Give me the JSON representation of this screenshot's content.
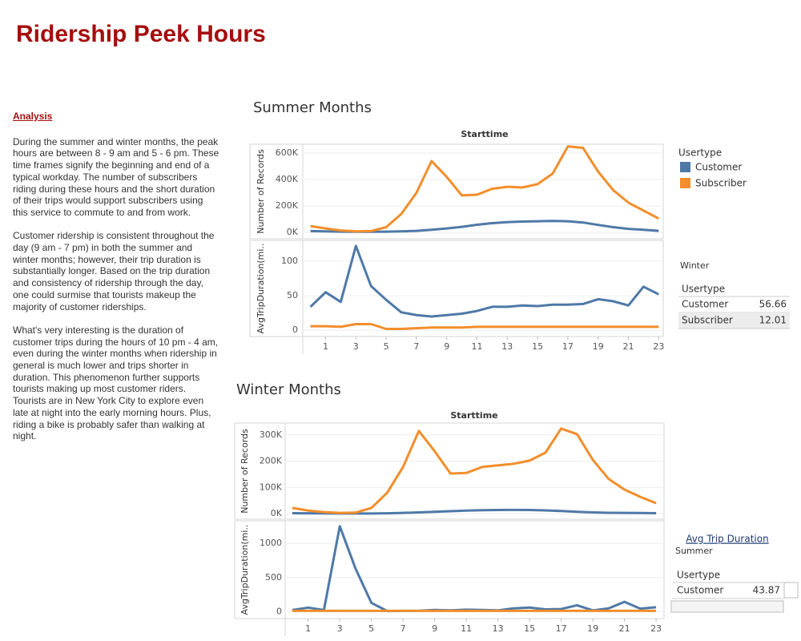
{
  "title": "Ridership Peek Hours",
  "analysis": {
    "heading": "Analysis",
    "paragraphs": [
      "During the summer and winter months, the peak hours are between 8 - 9 am and 5 - 6 pm. These time frames signify the beginning and end of a typical workday. The number of subscribers riding during these hours and the short duration of their trips would support subscribers using this service to commute to and from work.",
      "Customer ridership is consistent throughout the day (9 am - 7 pm) in both the summer and winter months; however, their trip duration is substantially longer. Based on the trip duration and consistency of ridership through the day, one could surmise that tourists makeup the majority of customer riderships.",
      "What's very interesting is the duration of customer trips during the hours of 10 pm - 4 am, even during the winter months when ridership in general is much lower and trips shorter in duration. This phenomenon further supports tourists making up most customer riders. Tourists are in New York City to explore even late at night into the early morning hours. Plus, riding a bike is probably safer than walking at night."
    ]
  },
  "chart_data": [
    {
      "type": "line",
      "title": "Summer Months",
      "subtitle": "Starttime",
      "ylabel": "Number of Records",
      "legend_title": "Usertype",
      "x": [
        0,
        1,
        2,
        3,
        4,
        5,
        6,
        7,
        8,
        9,
        10,
        11,
        12,
        13,
        14,
        15,
        16,
        17,
        18,
        19,
        20,
        21,
        22,
        23
      ],
      "xlim": [
        -0.4,
        23.3
      ],
      "ylim": [
        -48000,
        667000
      ],
      "yticks": [
        {
          "value": 0,
          "label": "0K"
        },
        {
          "value": 200000,
          "label": "200K"
        },
        {
          "value": 400000,
          "label": "400K"
        },
        {
          "value": 600000,
          "label": "600K"
        }
      ],
      "grid": true,
      "series": [
        {
          "name": "Customer",
          "color": "#4e79a7",
          "values": [
            10000,
            8000,
            6000,
            5000,
            5000,
            6000,
            8000,
            12000,
            20000,
            30000,
            42000,
            58000,
            70000,
            78000,
            82000,
            85000,
            87000,
            85000,
            75000,
            57000,
            40000,
            27000,
            20000,
            12000
          ]
        },
        {
          "name": "Subscriber",
          "color": "#f28e2b",
          "values": [
            48000,
            30000,
            15000,
            8000,
            10000,
            40000,
            140000,
            300000,
            540000,
            420000,
            280000,
            285000,
            330000,
            345000,
            340000,
            365000,
            445000,
            650000,
            640000,
            460000,
            320000,
            225000,
            165000,
            105000
          ]
        }
      ]
    },
    {
      "type": "line",
      "ylabel": "AvgTripDuration(mi..",
      "x": [
        0,
        1,
        2,
        3,
        4,
        5,
        6,
        7,
        8,
        9,
        10,
        11,
        12,
        13,
        14,
        15,
        16,
        17,
        18,
        19,
        20,
        21,
        22,
        23
      ],
      "xlim": [
        -0.4,
        23.3
      ],
      "xticks": [
        1,
        3,
        5,
        7,
        9,
        11,
        13,
        15,
        17,
        19,
        21,
        23
      ],
      "ylim": [
        -9,
        130
      ],
      "yticks": [
        0,
        50,
        100
      ],
      "grid": true,
      "series": [
        {
          "color": "#4e79a7",
          "values": [
            34,
            55,
            41,
            122,
            64,
            44,
            26,
            22,
            20,
            22,
            24,
            28,
            34,
            34,
            36,
            35,
            37,
            37,
            38,
            45,
            42,
            36,
            63,
            52
          ]
        },
        {
          "color": "#f28e2b",
          "values": [
            6,
            6,
            5,
            9,
            9,
            2,
            2,
            3,
            4,
            4,
            4,
            5,
            5,
            5,
            5,
            5,
            5,
            5,
            5,
            5,
            5,
            5,
            5,
            5
          ]
        }
      ]
    },
    {
      "type": "line",
      "title": "Winter Months",
      "subtitle": "Starttime",
      "ylabel": "Number of Records",
      "x": [
        0,
        1,
        2,
        3,
        4,
        5,
        6,
        7,
        8,
        9,
        10,
        11,
        12,
        13,
        14,
        15,
        16,
        17,
        18,
        19,
        20,
        21,
        22,
        23
      ],
      "xlim": [
        -0.35,
        23.5
      ],
      "ylim": [
        -21000,
        345000
      ],
      "yticks": [
        {
          "value": 0,
          "label": "0K"
        },
        {
          "value": 100000,
          "label": "100K"
        },
        {
          "value": 200000,
          "label": "200K"
        },
        {
          "value": 300000,
          "label": "300K"
        }
      ],
      "grid": true,
      "series": [
        {
          "color": "#4e79a7",
          "values": [
            2000,
            1500,
            1000,
            800,
            700,
            800,
            1500,
            3000,
            5000,
            7000,
            9500,
            12000,
            13500,
            14000,
            14500,
            14000,
            12500,
            10000,
            7000,
            5000,
            3500,
            3000,
            2500,
            2000
          ]
        },
        {
          "color": "#f28e2b",
          "values": [
            22000,
            12000,
            6000,
            3000,
            4000,
            22000,
            80000,
            178000,
            315000,
            238000,
            153000,
            155000,
            178000,
            184000,
            190000,
            202000,
            232000,
            324000,
            303000,
            205000,
            132000,
            92000,
            64000,
            40000
          ]
        }
      ]
    },
    {
      "type": "line",
      "ylabel": "AvgTripDuration(mi..",
      "x": [
        0,
        1,
        2,
        3,
        4,
        5,
        6,
        7,
        8,
        9,
        10,
        11,
        12,
        13,
        14,
        15,
        16,
        17,
        18,
        19,
        20,
        21,
        22,
        23
      ],
      "xlim": [
        -0.35,
        23.5
      ],
      "xticks": [
        1,
        3,
        5,
        7,
        9,
        11,
        13,
        15,
        17,
        19,
        21,
        23
      ],
      "ylim": [
        -100,
        1330
      ],
      "yticks": [
        0,
        500,
        1000
      ],
      "grid": true,
      "series": [
        {
          "color": "#4e79a7",
          "values": [
            25,
            60,
            25,
            1250,
            630,
            130,
            10,
            12,
            15,
            25,
            20,
            30,
            25,
            20,
            50,
            60,
            35,
            40,
            95,
            20,
            50,
            145,
            45,
            65
          ]
        },
        {
          "color": "#f28e2b",
          "values": [
            12,
            12,
            12,
            12,
            12,
            12,
            12,
            12,
            12,
            12,
            12,
            12,
            12,
            12,
            12,
            12,
            12,
            12,
            12,
            12,
            12,
            12,
            12,
            12
          ]
        }
      ]
    }
  ],
  "side_tables": [
    {
      "title": "Winter",
      "header": "Usertype",
      "rows": [
        {
          "label": "Customer",
          "value": 56.66
        },
        {
          "label": "Subscriber",
          "value": 12.01
        }
      ]
    },
    {
      "heading": "Avg Trip Duration",
      "title": "Summer",
      "header": "Usertype",
      "rows": [
        {
          "label": "Customer",
          "value": 43.87
        }
      ]
    }
  ]
}
